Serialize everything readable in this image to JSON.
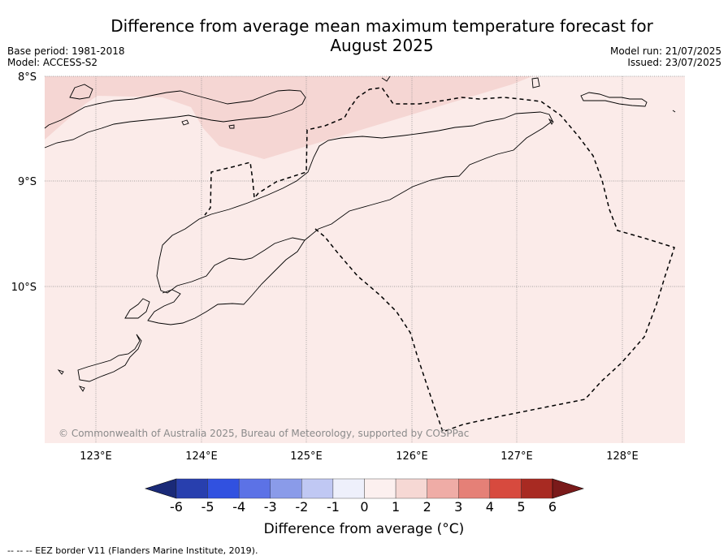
{
  "title": "Difference from average mean maximum temperature forecast for August 2025",
  "meta_left": {
    "base_period": "Base period: 1981-2018",
    "model": "Model: ACCESS-S2"
  },
  "meta_right": {
    "model_run": "Model run: 21/07/2025",
    "issued": "Issued: 23/07/2025"
  },
  "map": {
    "lat_ticks": [
      "8°S",
      "9°S",
      "10°S"
    ],
    "lon_ticks": [
      "123°E",
      "124°E",
      "125°E",
      "126°E",
      "127°E",
      "128°E"
    ],
    "copyright": "© Commonwealth of Australia 2025, Bureau of Meteorology, supported by COSPPac",
    "base_fill_color": "#fbebe9",
    "warm_fill_color": "#f5d6d3"
  },
  "colorbar": {
    "ticks": [
      "-6",
      "-5",
      "-4",
      "-3",
      "-2",
      "-1",
      "0",
      "1",
      "2",
      "3",
      "4",
      "5",
      "6"
    ],
    "colors": [
      "#1a2a78",
      "#283fae",
      "#3151e0",
      "#5c72e6",
      "#8a9be9",
      "#c0c8f3",
      "#eef0fb",
      "#fcf0ef",
      "#f6d8d4",
      "#efaca6",
      "#e58077",
      "#d74a3e",
      "#a82a22",
      "#7a1a1a"
    ],
    "title": "Difference from average (°C)"
  },
  "footnote": "--  --  -- EEZ border V11 (Flanders Marine Institute, 2019)."
}
